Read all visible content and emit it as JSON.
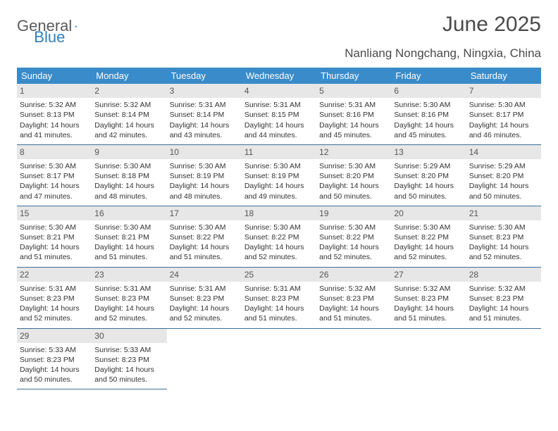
{
  "logo": {
    "text1": "General",
    "text2": "Blue"
  },
  "title": "June 2025",
  "subtitle": "Nanliang Nongchang, Ningxia, China",
  "colors": {
    "header_bg": "#3a8bc9",
    "header_text": "#ffffff",
    "daynum_bg": "#e7e7e7",
    "rule": "#3a6f99",
    "title_text": "#4a4a4a",
    "body_text": "#333333"
  },
  "weekdays": [
    "Sunday",
    "Monday",
    "Tuesday",
    "Wednesday",
    "Thursday",
    "Friday",
    "Saturday"
  ],
  "days": [
    {
      "n": "1",
      "sr": "5:32 AM",
      "ss": "8:13 PM",
      "dl": "14 hours and 41 minutes."
    },
    {
      "n": "2",
      "sr": "5:32 AM",
      "ss": "8:14 PM",
      "dl": "14 hours and 42 minutes."
    },
    {
      "n": "3",
      "sr": "5:31 AM",
      "ss": "8:14 PM",
      "dl": "14 hours and 43 minutes."
    },
    {
      "n": "4",
      "sr": "5:31 AM",
      "ss": "8:15 PM",
      "dl": "14 hours and 44 minutes."
    },
    {
      "n": "5",
      "sr": "5:31 AM",
      "ss": "8:16 PM",
      "dl": "14 hours and 45 minutes."
    },
    {
      "n": "6",
      "sr": "5:30 AM",
      "ss": "8:16 PM",
      "dl": "14 hours and 45 minutes."
    },
    {
      "n": "7",
      "sr": "5:30 AM",
      "ss": "8:17 PM",
      "dl": "14 hours and 46 minutes."
    },
    {
      "n": "8",
      "sr": "5:30 AM",
      "ss": "8:17 PM",
      "dl": "14 hours and 47 minutes."
    },
    {
      "n": "9",
      "sr": "5:30 AM",
      "ss": "8:18 PM",
      "dl": "14 hours and 48 minutes."
    },
    {
      "n": "10",
      "sr": "5:30 AM",
      "ss": "8:19 PM",
      "dl": "14 hours and 48 minutes."
    },
    {
      "n": "11",
      "sr": "5:30 AM",
      "ss": "8:19 PM",
      "dl": "14 hours and 49 minutes."
    },
    {
      "n": "12",
      "sr": "5:30 AM",
      "ss": "8:20 PM",
      "dl": "14 hours and 50 minutes."
    },
    {
      "n": "13",
      "sr": "5:29 AM",
      "ss": "8:20 PM",
      "dl": "14 hours and 50 minutes."
    },
    {
      "n": "14",
      "sr": "5:29 AM",
      "ss": "8:20 PM",
      "dl": "14 hours and 50 minutes."
    },
    {
      "n": "15",
      "sr": "5:30 AM",
      "ss": "8:21 PM",
      "dl": "14 hours and 51 minutes."
    },
    {
      "n": "16",
      "sr": "5:30 AM",
      "ss": "8:21 PM",
      "dl": "14 hours and 51 minutes."
    },
    {
      "n": "17",
      "sr": "5:30 AM",
      "ss": "8:22 PM",
      "dl": "14 hours and 51 minutes."
    },
    {
      "n": "18",
      "sr": "5:30 AM",
      "ss": "8:22 PM",
      "dl": "14 hours and 52 minutes."
    },
    {
      "n": "19",
      "sr": "5:30 AM",
      "ss": "8:22 PM",
      "dl": "14 hours and 52 minutes."
    },
    {
      "n": "20",
      "sr": "5:30 AM",
      "ss": "8:22 PM",
      "dl": "14 hours and 52 minutes."
    },
    {
      "n": "21",
      "sr": "5:30 AM",
      "ss": "8:23 PM",
      "dl": "14 hours and 52 minutes."
    },
    {
      "n": "22",
      "sr": "5:31 AM",
      "ss": "8:23 PM",
      "dl": "14 hours and 52 minutes."
    },
    {
      "n": "23",
      "sr": "5:31 AM",
      "ss": "8:23 PM",
      "dl": "14 hours and 52 minutes."
    },
    {
      "n": "24",
      "sr": "5:31 AM",
      "ss": "8:23 PM",
      "dl": "14 hours and 52 minutes."
    },
    {
      "n": "25",
      "sr": "5:31 AM",
      "ss": "8:23 PM",
      "dl": "14 hours and 51 minutes."
    },
    {
      "n": "26",
      "sr": "5:32 AM",
      "ss": "8:23 PM",
      "dl": "14 hours and 51 minutes."
    },
    {
      "n": "27",
      "sr": "5:32 AM",
      "ss": "8:23 PM",
      "dl": "14 hours and 51 minutes."
    },
    {
      "n": "28",
      "sr": "5:32 AM",
      "ss": "8:23 PM",
      "dl": "14 hours and 51 minutes."
    },
    {
      "n": "29",
      "sr": "5:33 AM",
      "ss": "8:23 PM",
      "dl": "14 hours and 50 minutes."
    },
    {
      "n": "30",
      "sr": "5:33 AM",
      "ss": "8:23 PM",
      "dl": "14 hours and 50 minutes."
    }
  ],
  "labels": {
    "sunrise": "Sunrise:",
    "sunset": "Sunset:",
    "daylight": "Daylight:"
  }
}
